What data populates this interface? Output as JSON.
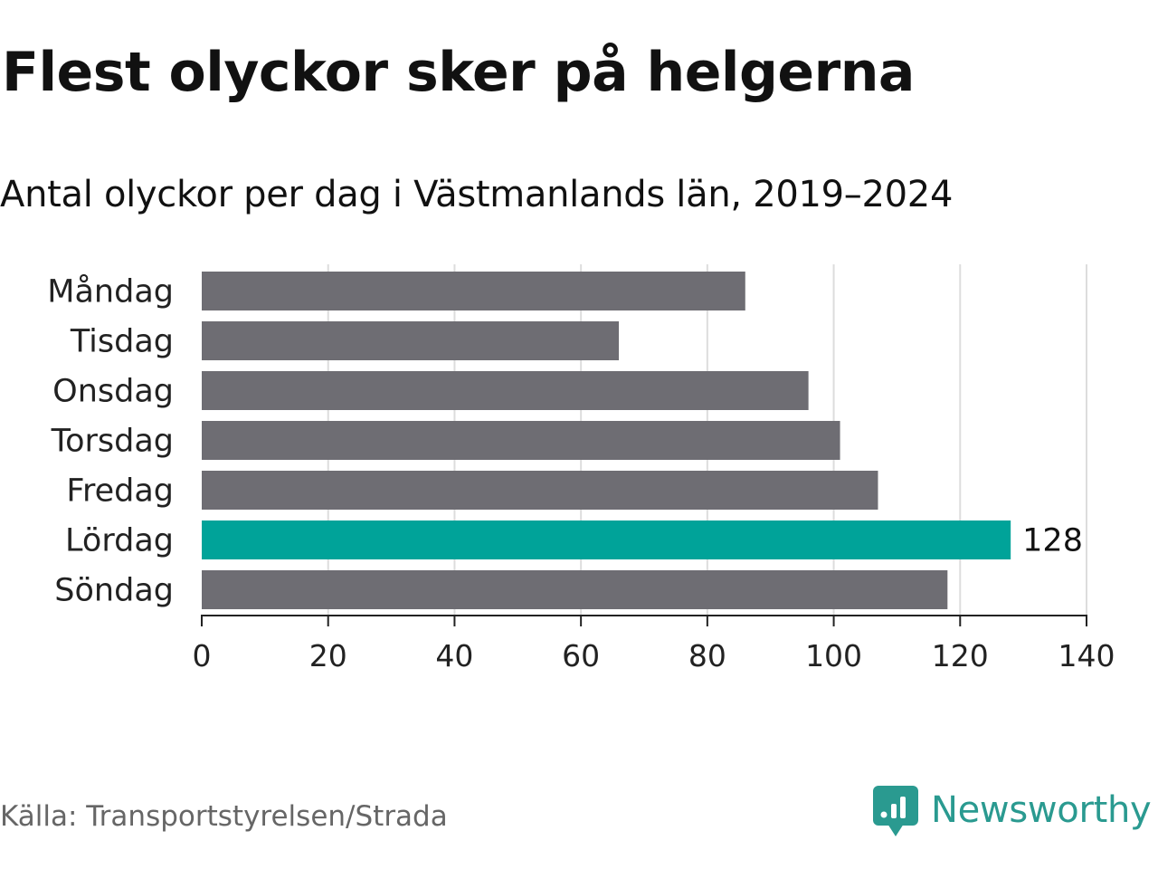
{
  "title": "Flest olyckor sker på helgerna",
  "subtitle": "Antal olyckor per dag i Västmanlands län, 2019–2024",
  "source": "Källa: Transportstyrelsen/Strada",
  "brand": {
    "name": "Newsworthy",
    "icon": "newsworthy-logo-icon",
    "color": "#2a9a90"
  },
  "chart_data": {
    "type": "bar",
    "orientation": "horizontal",
    "categories": [
      "Måndag",
      "Tisdag",
      "Onsdag",
      "Torsdag",
      "Fredag",
      "Lördag",
      "Söndag"
    ],
    "values": [
      86,
      66,
      96,
      101,
      107,
      128,
      118
    ],
    "xlim": [
      0,
      140
    ],
    "xticks": [
      0,
      20,
      40,
      60,
      80,
      100,
      120,
      140
    ],
    "grid": "vertical",
    "highlight": {
      "category": "Lördag",
      "label": "128"
    },
    "colors": {
      "default": "#6e6d73",
      "highlight": "#00a399",
      "grid": "#dddddd",
      "axis": "#222222"
    },
    "title": "",
    "xlabel": "",
    "ylabel": ""
  }
}
